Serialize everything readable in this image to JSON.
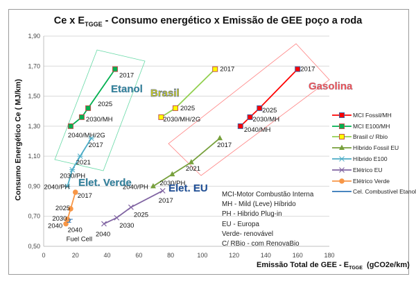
{
  "chart_data": {
    "type": "line",
    "title": "Ce x E",
    "title_sub": "TGGE",
    "title_rest": " - Consumo energético x Emissão de GEE poço a roda",
    "xlabel": "Emissão Total de GEE - E",
    "xlabel_sub": "TGGE",
    "xlabel_unit": "(gCO2e/km)",
    "ylabel": "Consumo Energético  Ce ( MJ/km)",
    "xlim": [
      0,
      180
    ],
    "ylim": [
      0.5,
      1.9
    ],
    "xticks": [
      "0",
      "20",
      "40",
      "60",
      "80",
      "100",
      "120",
      "140",
      "160",
      "180"
    ],
    "yticks": [
      "0,50",
      "0,70",
      "0,90",
      "1,10",
      "1,30",
      "1,50",
      "1,70",
      "1,90"
    ],
    "grid": "horizontal",
    "legend_position": "right",
    "series": [
      {
        "name": "MCI Fossil/MH",
        "color": "#ff0000",
        "marker": "square",
        "marker_fill": "#ff0000",
        "marker_stroke": "#4060a0",
        "points": [
          {
            "x": 160,
            "y": 1.68,
            "label": "2017"
          },
          {
            "x": 136,
            "y": 1.42,
            "label": "2025"
          },
          {
            "x": 130,
            "y": 1.36,
            "label": "2030/MH"
          },
          {
            "x": 124,
            "y": 1.3,
            "label": "2040/MH"
          }
        ]
      },
      {
        "name": "MCI E100/MH",
        "color": "#00b050",
        "marker": "square",
        "marker_fill": "#00b050",
        "marker_stroke": "#c0504d",
        "points": [
          {
            "x": 45,
            "y": 1.68,
            "label": "2017"
          },
          {
            "x": 28,
            "y": 1.42,
            "label": "2025"
          },
          {
            "x": 24,
            "y": 1.36,
            "label": "2030/MH"
          },
          {
            "x": 17,
            "y": 1.3,
            "label": "2040/MH/2G"
          }
        ]
      },
      {
        "name": "Brasil c/ Rbio",
        "color": "#92d050",
        "marker": "square",
        "marker_fill": "#ffff00",
        "marker_stroke": "#c0504d",
        "points": [
          {
            "x": 108,
            "y": 1.68,
            "label": "2017"
          },
          {
            "x": 83,
            "y": 1.42,
            "label": "2025"
          },
          {
            "x": 74,
            "y": 1.36,
            "label": "2030/MH/2G"
          }
        ]
      },
      {
        "name": "Híbrido Fossil EU",
        "color": "#77a03c",
        "marker": "triangle",
        "marker_fill": "#77a03c",
        "marker_stroke": "#77a03c",
        "points": [
          {
            "x": 111,
            "y": 1.22,
            "label": "2017"
          },
          {
            "x": 93,
            "y": 1.06,
            "label": "2021"
          },
          {
            "x": 81,
            "y": 0.98,
            "label": "2030/PH"
          },
          {
            "x": 69,
            "y": 0.9,
            "label": "2040/PH"
          }
        ]
      },
      {
        "name": "Híbrido E100",
        "color": "#4bacc6",
        "marker": "star",
        "marker_fill": "#4bacc6",
        "marker_stroke": "#4bacc6",
        "points": [
          {
            "x": 30,
            "y": 1.22,
            "label": "2017"
          },
          {
            "x": 23,
            "y": 1.1,
            "label": "2021"
          },
          {
            "x": 18,
            "y": 1.01,
            "label": "2030/PH"
          },
          {
            "x": 15,
            "y": 0.9,
            "label": "2040/PH"
          }
        ]
      },
      {
        "name": "Elétrico EU",
        "color": "#8064a2",
        "marker": "x",
        "marker_fill": "#8064a2",
        "marker_stroke": "#8064a2",
        "points": [
          {
            "x": 75,
            "y": 0.87,
            "label": "2017"
          },
          {
            "x": 55,
            "y": 0.76,
            "label": "2025"
          },
          {
            "x": 46,
            "y": 0.69,
            "label": "2030"
          },
          {
            "x": 38,
            "y": 0.65,
            "label": "2040"
          }
        ]
      },
      {
        "name": "Elétrico Verde",
        "color": "#f79646",
        "marker": "circle",
        "marker_fill": "#f79646",
        "marker_stroke": "#f79646",
        "points": [
          {
            "x": 20,
            "y": 0.86,
            "label": "2017"
          },
          {
            "x": 17,
            "y": 0.75,
            "label": "2025"
          },
          {
            "x": 15,
            "y": 0.68,
            "label": "2030"
          },
          {
            "x": 14,
            "y": 0.65,
            "label": "2040"
          }
        ]
      },
      {
        "name": "Cel. Combustível Etanol",
        "color": "#2e75b6",
        "marker": "dash",
        "marker_fill": "#2e75b6",
        "marker_stroke": "#2e75b6",
        "points": [
          {
            "x": 17,
            "y": 0.68,
            "label": ""
          },
          {
            "x": 16,
            "y": 0.66,
            "label": "2040"
          }
        ],
        "extra_label": "Fuel Cell"
      }
    ],
    "group_labels": [
      {
        "text": "Etanol",
        "color": "#31859c"
      },
      {
        "text": "Brasil",
        "color": "#e5e500"
      },
      {
        "text": "Gasolina",
        "color": "#ff5050"
      },
      {
        "text": "Elet. Verde",
        "color": "#31859c"
      },
      {
        "text": "Elet. EU",
        "color": "#1f4e99"
      }
    ],
    "notes": [
      "MCI-Motor Combustão Interna",
      "MH - Mild (Leve) Híbrido",
      "PH - Hibrido Plug-in",
      "EU - Europa",
      "Verde- renovável",
      "C/ RBio - com RenovaBio"
    ]
  }
}
